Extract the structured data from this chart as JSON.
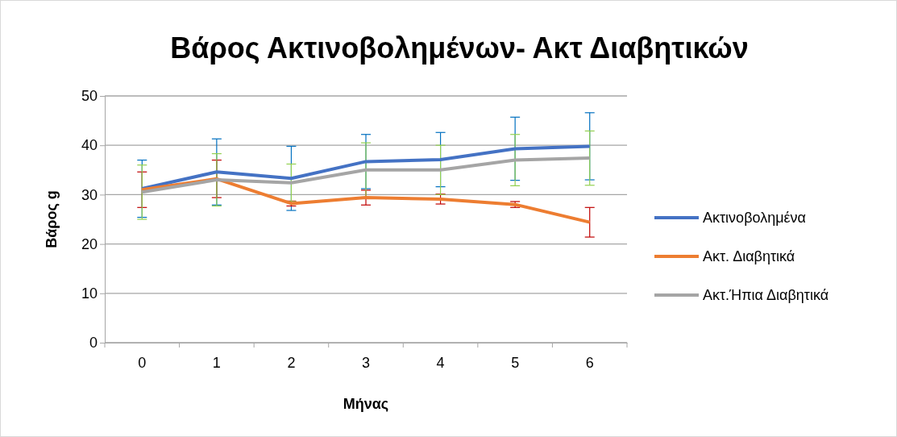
{
  "chart_data": {
    "type": "line",
    "title": "Βάρος Ακτινοβολημένων- Ακτ Διαβητικών",
    "xlabel": "Μήνας",
    "ylabel": "Βάρος g",
    "categories": [
      "0",
      "1",
      "2",
      "3",
      "4",
      "5",
      "6"
    ],
    "ylim": [
      0,
      50
    ],
    "yticks": [
      0,
      10,
      20,
      30,
      40,
      50
    ],
    "grid": "y",
    "legend": "right",
    "marker": "none",
    "series": [
      {
        "name": "Ακτινοβολημένα",
        "color": "#4472c4",
        "values": [
          31.2,
          34.6,
          33.3,
          36.7,
          37.1,
          39.3,
          39.8
        ],
        "errors": [
          5.8,
          6.7,
          6.5,
          5.5,
          5.5,
          6.4,
          6.8
        ]
      },
      {
        "name": "Ακτ. Διαβητικά",
        "color": "#ed7d31",
        "values": [
          31.0,
          33.2,
          28.2,
          29.4,
          29.1,
          28.0,
          24.4
        ],
        "errors": [
          3.6,
          3.8,
          0.5,
          1.5,
          1.0,
          0.6,
          3.0
        ]
      },
      {
        "name": "Ακτ.Ήπια Διαβητικά",
        "color": "#a5a5a5",
        "values": [
          30.5,
          33.0,
          32.4,
          35.0,
          35.0,
          37.0,
          37.4
        ],
        "errors": [
          5.5,
          5.3,
          3.8,
          5.5,
          5.0,
          5.2,
          5.5
        ]
      }
    ]
  }
}
